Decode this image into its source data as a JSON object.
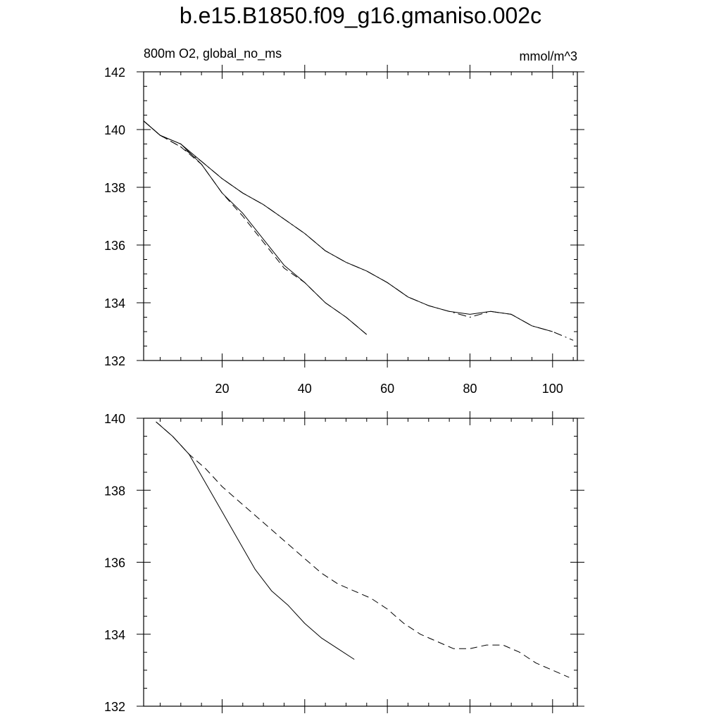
{
  "figure": {
    "title": "b.e15.B1850.f09_g16.gmaniso.002c"
  },
  "chart_data": [
    {
      "type": "line",
      "left_label": "800m O2, global_no_ms",
      "right_label": "mmol/m^3",
      "xlim": [
        1,
        106
      ],
      "ylim": [
        132,
        142
      ],
      "x_ticks": [
        20,
        40,
        60,
        80,
        100
      ],
      "x_tick_labels": [
        "20",
        "40",
        "60",
        "80",
        "100"
      ],
      "y_ticks": [
        132,
        134,
        136,
        138,
        140,
        142
      ],
      "y_tick_labels": [
        "132",
        "134",
        "136",
        "138",
        "140",
        "142"
      ],
      "grid": false,
      "series": [
        {
          "style": "solid",
          "x": [
            1,
            5,
            10,
            15,
            20,
            25,
            30,
            35,
            40,
            45,
            50,
            55
          ],
          "y": [
            140.3,
            139.8,
            139.5,
            138.8,
            137.8,
            137.1,
            136.2,
            135.3,
            134.7,
            134.0,
            133.5,
            132.9
          ]
        },
        {
          "style": "dash",
          "x": [
            1,
            5,
            10,
            15,
            20,
            25,
            30,
            35,
            40,
            45,
            50,
            55
          ],
          "y": [
            140.3,
            139.8,
            139.4,
            138.8,
            137.8,
            137.0,
            136.1,
            135.2,
            134.7,
            134.0,
            133.5,
            132.9
          ]
        },
        {
          "style": "solid",
          "x": [
            1,
            5,
            10,
            15,
            20,
            25,
            30,
            35,
            40,
            45,
            50,
            55,
            60,
            65,
            70,
            75,
            80,
            85,
            90,
            95,
            100
          ],
          "y": [
            140.3,
            139.8,
            139.5,
            138.9,
            138.3,
            137.8,
            137.4,
            136.9,
            136.4,
            135.8,
            135.4,
            135.1,
            134.7,
            134.2,
            133.9,
            133.7,
            133.6,
            133.7,
            133.6,
            133.2,
            133.0
          ]
        },
        {
          "style": "dashdot",
          "x": [
            1,
            5,
            10,
            15,
            20,
            25,
            30,
            35,
            40,
            45,
            50,
            55,
            60,
            65,
            70,
            75,
            80,
            85,
            90,
            95,
            100,
            105
          ],
          "y": [
            140.3,
            139.8,
            139.4,
            138.9,
            138.3,
            137.8,
            137.4,
            136.9,
            136.4,
            135.8,
            135.4,
            135.1,
            134.7,
            134.2,
            133.9,
            133.7,
            133.5,
            133.7,
            133.6,
            133.2,
            133.0,
            132.7
          ]
        }
      ]
    },
    {
      "type": "line",
      "xlim": [
        1,
        106
      ],
      "ylim": [
        132,
        140
      ],
      "x_ticks": [
        20,
        40,
        60,
        80,
        100
      ],
      "x_tick_labels": [],
      "y_ticks": [
        132,
        134,
        136,
        138,
        140
      ],
      "y_tick_labels": [
        "132",
        "134",
        "136",
        "138",
        "140"
      ],
      "grid": false,
      "series": [
        {
          "style": "solid",
          "x": [
            4,
            8,
            12,
            16,
            20,
            24,
            28,
            32,
            36,
            40,
            44,
            48,
            52
          ],
          "y": [
            139.9,
            139.5,
            139.0,
            138.2,
            137.4,
            136.6,
            135.8,
            135.2,
            134.8,
            134.3,
            133.9,
            133.6,
            133.3
          ]
        },
        {
          "style": "dash",
          "x": [
            4,
            8,
            12,
            16,
            20,
            24,
            28,
            32,
            36,
            40,
            44,
            48,
            52,
            56,
            60,
            64,
            68,
            72,
            76,
            80,
            84,
            88,
            92,
            96,
            100,
            104
          ],
          "y": [
            139.9,
            139.5,
            139.0,
            138.6,
            138.1,
            137.7,
            137.3,
            136.9,
            136.5,
            136.1,
            135.7,
            135.4,
            135.2,
            135.0,
            134.7,
            134.3,
            134.0,
            133.8,
            133.6,
            133.6,
            133.7,
            133.7,
            133.5,
            133.2,
            133.0,
            132.8
          ]
        }
      ]
    }
  ]
}
